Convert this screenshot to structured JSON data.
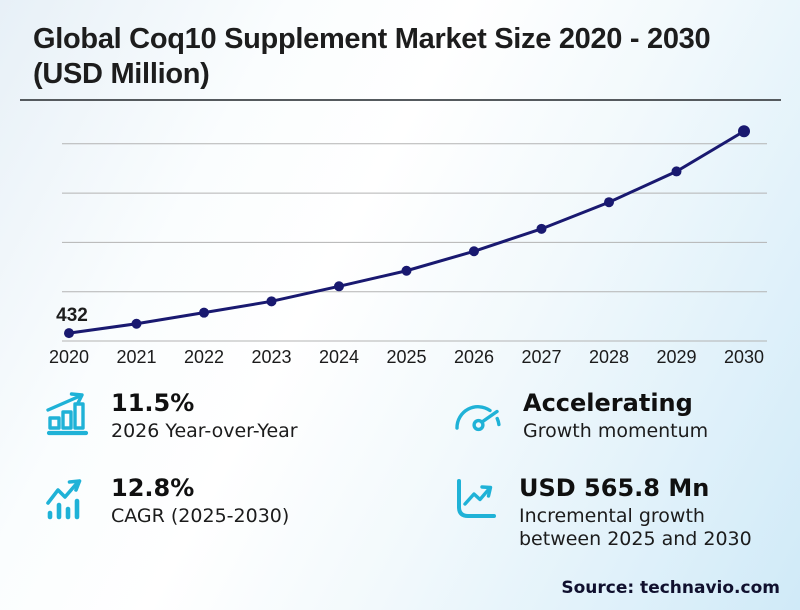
{
  "title": "Global Coq10 Supplement Market Size 2020 - 2030 (USD Million)",
  "source": "Source: technavio.com",
  "colors": {
    "accent_cyan": "#1fb2d7",
    "line_navy": "#191970",
    "gridline_gray": "#b3b3b3",
    "text_dark": "#1d1d1d"
  },
  "chart_data": {
    "type": "line",
    "title": "Global Coq10 Supplement Market Size 2020 - 2030 (USD Million)",
    "x": [
      2020,
      2021,
      2022,
      2023,
      2024,
      2025,
      2026,
      2027,
      2028,
      2029,
      2030
    ],
    "series": [
      {
        "name": "Market size (USD Million)",
        "values": [
          432,
          470,
          515,
          561,
          622,
          685,
          764,
          855,
          963,
          1088,
          1251
        ]
      }
    ],
    "first_point_label": "432",
    "xlabel": "",
    "ylabel": "USD Million",
    "ylim": [
      400,
      1300
    ],
    "gridline_values": [
      400,
      600,
      800,
      1000,
      1200
    ],
    "grid": true,
    "legend": "none",
    "line_color": "#191970",
    "marker": "circle"
  },
  "stats": [
    {
      "icon": "bar-chart-growth-icon",
      "value": "11.5%",
      "label": "2026 Year-over-Year"
    },
    {
      "icon": "speedometer-icon",
      "value": "Accelerating",
      "label": "Growth momentum"
    },
    {
      "icon": "trend-bars-icon",
      "value": "12.8%",
      "label": "CAGR (2025-2030)"
    },
    {
      "icon": "chart-box-icon",
      "value": "USD 565.8 Mn",
      "label": "Incremental growth between 2025 and 2030"
    }
  ]
}
